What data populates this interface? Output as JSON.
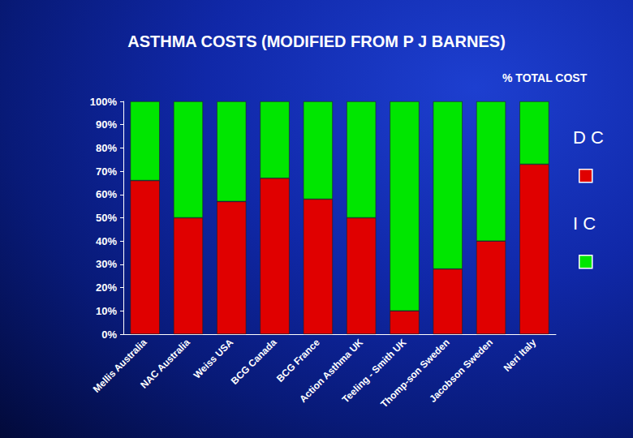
{
  "chart_data": {
    "type": "bar",
    "title": "ASTHMA COSTS (MODIFIED FROM P J BARNES)",
    "subtitle": "% TOTAL COST",
    "categories": [
      "Mellis Australia",
      "NAC Australia",
      "Weiss USA",
      "BCG Canada",
      "BCG France",
      "Action Asthma UK",
      "Teeling - Smith UK",
      "Thomp-son Sweden",
      "Jacobson Sweden",
      "Neri Italy"
    ],
    "series": [
      {
        "name": "D C",
        "color": "#e00000",
        "values": [
          66,
          50,
          57,
          67,
          58,
          50,
          10,
          28,
          40,
          73
        ]
      },
      {
        "name": "I C",
        "color": "#00e600",
        "values": [
          34,
          50,
          43,
          33,
          42,
          50,
          90,
          72,
          60,
          27
        ]
      }
    ],
    "ylim": [
      0,
      100
    ],
    "yticks": [
      {
        "value": 0,
        "label": "0%"
      },
      {
        "value": 10,
        "label": "10%"
      },
      {
        "value": 20,
        "label": "20%"
      },
      {
        "value": 30,
        "label": "30%"
      },
      {
        "value": 40,
        "label": "40%"
      },
      {
        "value": 50,
        "label": "50%"
      },
      {
        "value": 60,
        "label": "60%"
      },
      {
        "value": 70,
        "label": "70%"
      },
      {
        "value": 80,
        "label": "80%"
      },
      {
        "value": 90,
        "label": "90%"
      },
      {
        "value": 100,
        "label": "100%"
      }
    ],
    "stacked": true,
    "grid": false,
    "legend": "right"
  }
}
